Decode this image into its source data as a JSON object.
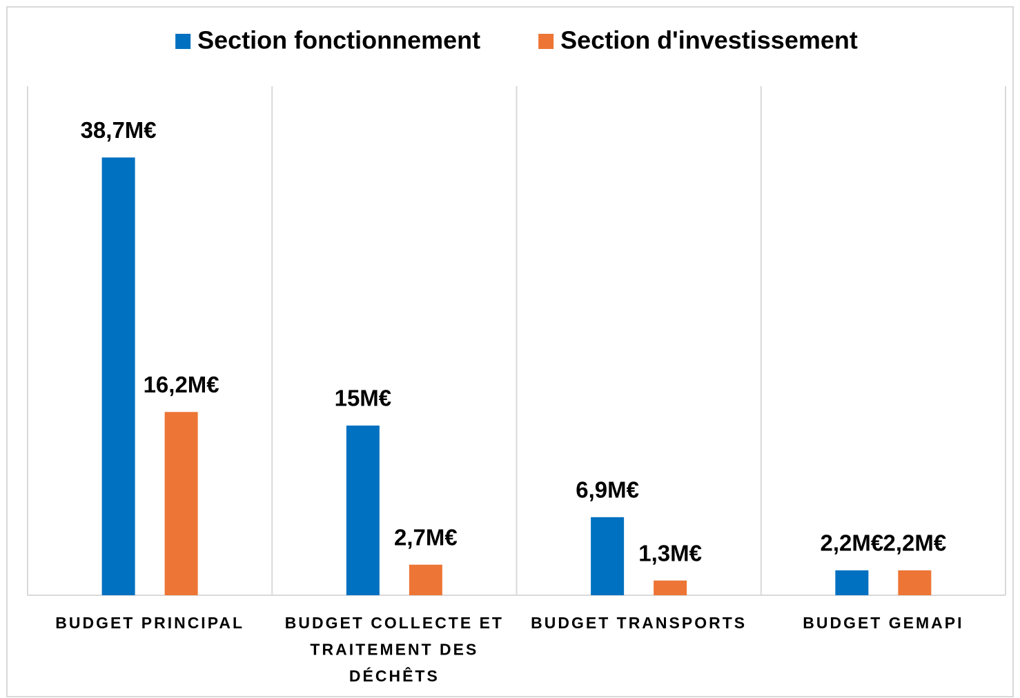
{
  "chart_data": {
    "type": "bar",
    "categories": [
      "BUDGET PRINCIPAL",
      "BUDGET COLLECTE ET TRAITEMENT DES DÉCHÊTS",
      "BUDGET TRANSPORTS",
      "BUDGET GEMAPI"
    ],
    "series": [
      {
        "name": "Section fonctionnement",
        "color": "#0070c0",
        "values": [
          38.7,
          15,
          6.9,
          2.2
        ],
        "value_labels": [
          "38,7M€",
          "15M€",
          "6,9M€",
          "2,2M€"
        ]
      },
      {
        "name": "Section d'investissement",
        "color": "#ed7535",
        "values": [
          16.2,
          2.7,
          1.3,
          2.2
        ],
        "value_labels": [
          "16,2M€",
          "2,7M€",
          "1,3M€",
          "2,2M€"
        ]
      }
    ],
    "ylim": [
      0,
      45
    ],
    "legend": "top"
  }
}
